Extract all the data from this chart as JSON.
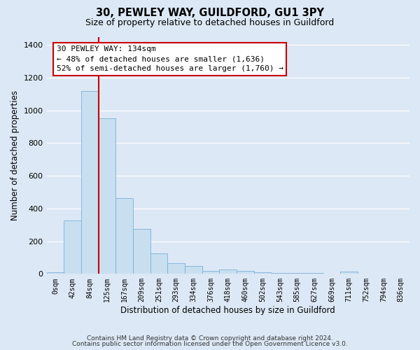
{
  "title1": "30, PEWLEY WAY, GUILDFORD, GU1 3PY",
  "title2": "Size of property relative to detached houses in Guildford",
  "xlabel": "Distribution of detached houses by size in Guildford",
  "ylabel": "Number of detached properties",
  "categories": [
    "0sqm",
    "42sqm",
    "84sqm",
    "125sqm",
    "167sqm",
    "209sqm",
    "251sqm",
    "293sqm",
    "334sqm",
    "376sqm",
    "418sqm",
    "460sqm",
    "502sqm",
    "543sqm",
    "585sqm",
    "627sqm",
    "669sqm",
    "711sqm",
    "752sqm",
    "794sqm",
    "836sqm"
  ],
  "values": [
    10,
    328,
    1120,
    950,
    465,
    275,
    125,
    65,
    48,
    20,
    25,
    20,
    10,
    5,
    5,
    5,
    0,
    15,
    0,
    0,
    0
  ],
  "bar_color": "#c8dff0",
  "bar_edgecolor": "#7ab0d8",
  "vline_index": 3,
  "vline_color": "#cc0000",
  "annotation_lines": [
    "30 PEWLEY WAY: 134sqm",
    "← 48% of detached houses are smaller (1,636)",
    "52% of semi-detached houses are larger (1,760) →"
  ],
  "annotation_box_facecolor": "#ffffff",
  "annotation_box_edgecolor": "#cc0000",
  "ylim_max": 1450,
  "yticks": [
    0,
    200,
    400,
    600,
    800,
    1000,
    1200,
    1400
  ],
  "bg_color": "#dce8f5",
  "grid_color": "#ffffff",
  "footer_line1": "Contains HM Land Registry data © Crown copyright and database right 2024.",
  "footer_line2": "Contains public sector information licensed under the Open Government Licence v3.0."
}
